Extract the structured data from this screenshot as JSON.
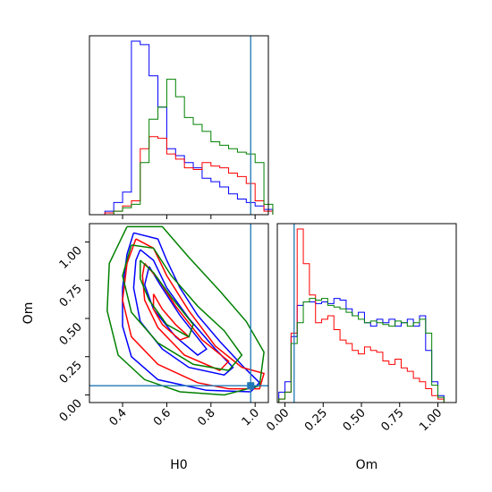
{
  "chart_data": {
    "type": "corner",
    "parameters": [
      "H0",
      "Om"
    ],
    "xlabel_h0": "H0",
    "xlabel_om": "Om",
    "ylabel_om": "Om",
    "truth": {
      "H0": 0.98,
      "Om": 0.06
    },
    "truth_color": "#1f77b4",
    "axes": {
      "H0": {
        "range": [
          0.25,
          1.06
        ],
        "ticks": [
          0.4,
          0.6,
          0.8,
          1.0
        ],
        "tick_labels": [
          "0.4",
          "0.6",
          "0.8",
          "1.0"
        ]
      },
      "Om": {
        "range": [
          -0.05,
          1.12
        ],
        "ticks": [
          0.0,
          0.25,
          0.5,
          0.75,
          1.0
        ],
        "tick_labels": [
          "0.00",
          "0.25",
          "0.50",
          "0.75",
          "1.00"
        ]
      }
    },
    "series": [
      {
        "color": "#0000ff",
        "hist_h0": {
          "edges_start": 0.28,
          "bin_width": 0.04,
          "counts": [
            0.0,
            0.02,
            0.07,
            0.13,
            1.0,
            0.98,
            0.8,
            0.62,
            0.38,
            0.34,
            0.3,
            0.27,
            0.21,
            0.19,
            0.16,
            0.12,
            0.09,
            0.07,
            0.05,
            0.03
          ]
        },
        "hist_om": {
          "edges_start": -0.04,
          "bin_width": 0.04,
          "counts": [
            0.06,
            0.12,
            0.38,
            0.56,
            0.58,
            0.58,
            0.57,
            0.58,
            0.57,
            0.6,
            0.59,
            0.54,
            0.5,
            0.52,
            0.46,
            0.44,
            0.48,
            0.46,
            0.48,
            0.44,
            0.46,
            0.48,
            0.44,
            0.5,
            0.3,
            0.12,
            0.04
          ]
        },
        "contours": [
          [
            [
              0.45,
              1.06
            ],
            [
              0.56,
              1.02
            ],
            [
              0.6,
              0.88
            ],
            [
              0.66,
              0.7
            ],
            [
              0.74,
              0.52
            ],
            [
              0.84,
              0.35
            ],
            [
              0.95,
              0.18
            ],
            [
              1.02,
              0.08
            ],
            [
              0.98,
              0.02
            ],
            [
              0.78,
              0.03
            ],
            [
              0.56,
              0.1
            ],
            [
              0.44,
              0.25
            ],
            [
              0.4,
              0.45
            ],
            [
              0.4,
              0.7
            ],
            [
              0.42,
              0.92
            ],
            [
              0.45,
              1.06
            ]
          ],
          [
            [
              0.48,
              0.95
            ],
            [
              0.54,
              0.88
            ],
            [
              0.6,
              0.7
            ],
            [
              0.7,
              0.5
            ],
            [
              0.82,
              0.3
            ],
            [
              0.9,
              0.18
            ],
            [
              0.86,
              0.13
            ],
            [
              0.7,
              0.18
            ],
            [
              0.58,
              0.3
            ],
            [
              0.48,
              0.48
            ],
            [
              0.45,
              0.7
            ],
            [
              0.46,
              0.88
            ],
            [
              0.48,
              0.95
            ]
          ],
          [
            [
              0.52,
              0.84
            ],
            [
              0.57,
              0.72
            ],
            [
              0.66,
              0.52
            ],
            [
              0.78,
              0.3
            ],
            [
              0.74,
              0.26
            ],
            [
              0.64,
              0.38
            ],
            [
              0.54,
              0.56
            ],
            [
              0.5,
              0.72
            ],
            [
              0.52,
              0.84
            ]
          ]
        ]
      },
      {
        "color": "#ff0000",
        "hist_h0": {
          "edges_start": 0.28,
          "bin_width": 0.04,
          "counts": [
            0.0,
            0.01,
            0.02,
            0.05,
            0.08,
            0.38,
            0.45,
            0.44,
            0.35,
            0.32,
            0.27,
            0.26,
            0.3,
            0.28,
            0.27,
            0.24,
            0.22,
            0.18,
            0.08,
            0.02
          ]
        },
        "hist_om": {
          "edges_start": -0.04,
          "bin_width": 0.04,
          "counts": [
            0.02,
            0.06,
            0.4,
            1.0,
            0.8,
            0.62,
            0.46,
            0.48,
            0.5,
            0.42,
            0.36,
            0.34,
            0.3,
            0.28,
            0.32,
            0.3,
            0.29,
            0.24,
            0.22,
            0.25,
            0.2,
            0.18,
            0.14,
            0.12,
            0.08,
            0.04,
            0.02
          ]
        },
        "contours": [
          [
            [
              0.46,
              1.02
            ],
            [
              0.54,
              0.96
            ],
            [
              0.6,
              0.78
            ],
            [
              0.7,
              0.55
            ],
            [
              0.82,
              0.32
            ],
            [
              0.94,
              0.18
            ],
            [
              1.04,
              0.14
            ],
            [
              1.02,
              0.04
            ],
            [
              0.88,
              0.04
            ],
            [
              0.74,
              0.08
            ],
            [
              0.56,
              0.2
            ],
            [
              0.44,
              0.38
            ],
            [
              0.4,
              0.62
            ],
            [
              0.42,
              0.86
            ],
            [
              0.46,
              1.02
            ]
          ],
          [
            [
              0.5,
              0.86
            ],
            [
              0.56,
              0.76
            ],
            [
              0.64,
              0.58
            ],
            [
              0.76,
              0.36
            ],
            [
              0.88,
              0.22
            ],
            [
              0.84,
              0.16
            ],
            [
              0.68,
              0.26
            ],
            [
              0.56,
              0.44
            ],
            [
              0.5,
              0.62
            ],
            [
              0.49,
              0.78
            ],
            [
              0.5,
              0.86
            ]
          ],
          [
            [
              0.54,
              0.66
            ],
            [
              0.58,
              0.56
            ],
            [
              0.64,
              0.46
            ],
            [
              0.7,
              0.38
            ],
            [
              0.66,
              0.36
            ],
            [
              0.58,
              0.46
            ],
            [
              0.54,
              0.56
            ],
            [
              0.54,
              0.66
            ]
          ]
        ]
      },
      {
        "color": "#008000",
        "hist_h0": {
          "edges_start": 0.28,
          "bin_width": 0.04,
          "counts": [
            0.0,
            0.0,
            0.02,
            0.04,
            0.06,
            0.3,
            0.55,
            0.62,
            0.78,
            0.68,
            0.56,
            0.52,
            0.48,
            0.42,
            0.4,
            0.38,
            0.36,
            0.35,
            0.3,
            0.06
          ]
        },
        "hist_om": {
          "edges_start": -0.04,
          "bin_width": 0.04,
          "counts": [
            0.02,
            0.06,
            0.34,
            0.46,
            0.58,
            0.6,
            0.59,
            0.6,
            0.56,
            0.55,
            0.54,
            0.52,
            0.5,
            0.48,
            0.46,
            0.47,
            0.46,
            0.45,
            0.44,
            0.47,
            0.46,
            0.44,
            0.46,
            0.48,
            0.4,
            0.1,
            0.03
          ]
        },
        "contours": [
          [
            [
              0.42,
              1.1
            ],
            [
              0.58,
              1.1
            ],
            [
              0.7,
              0.9
            ],
            [
              0.84,
              0.68
            ],
            [
              0.96,
              0.48
            ],
            [
              1.04,
              0.28
            ],
            [
              1.02,
              0.06
            ],
            [
              0.86,
              0.0
            ],
            [
              0.66,
              0.02
            ],
            [
              0.5,
              0.1
            ],
            [
              0.38,
              0.26
            ],
            [
              0.33,
              0.55
            ],
            [
              0.34,
              0.86
            ],
            [
              0.42,
              1.1
            ]
          ],
          [
            [
              0.44,
              0.98
            ],
            [
              0.54,
              0.96
            ],
            [
              0.62,
              0.78
            ],
            [
              0.74,
              0.58
            ],
            [
              0.86,
              0.42
            ],
            [
              0.94,
              0.26
            ],
            [
              0.88,
              0.16
            ],
            [
              0.72,
              0.2
            ],
            [
              0.56,
              0.34
            ],
            [
              0.44,
              0.54
            ],
            [
              0.4,
              0.78
            ],
            [
              0.44,
              0.98
            ]
          ],
          [
            [
              0.48,
              0.88
            ],
            [
              0.54,
              0.8
            ],
            [
              0.62,
              0.64
            ],
            [
              0.72,
              0.46
            ],
            [
              0.7,
              0.38
            ],
            [
              0.6,
              0.46
            ],
            [
              0.52,
              0.62
            ],
            [
              0.48,
              0.76
            ],
            [
              0.48,
              0.88
            ]
          ]
        ]
      }
    ]
  }
}
